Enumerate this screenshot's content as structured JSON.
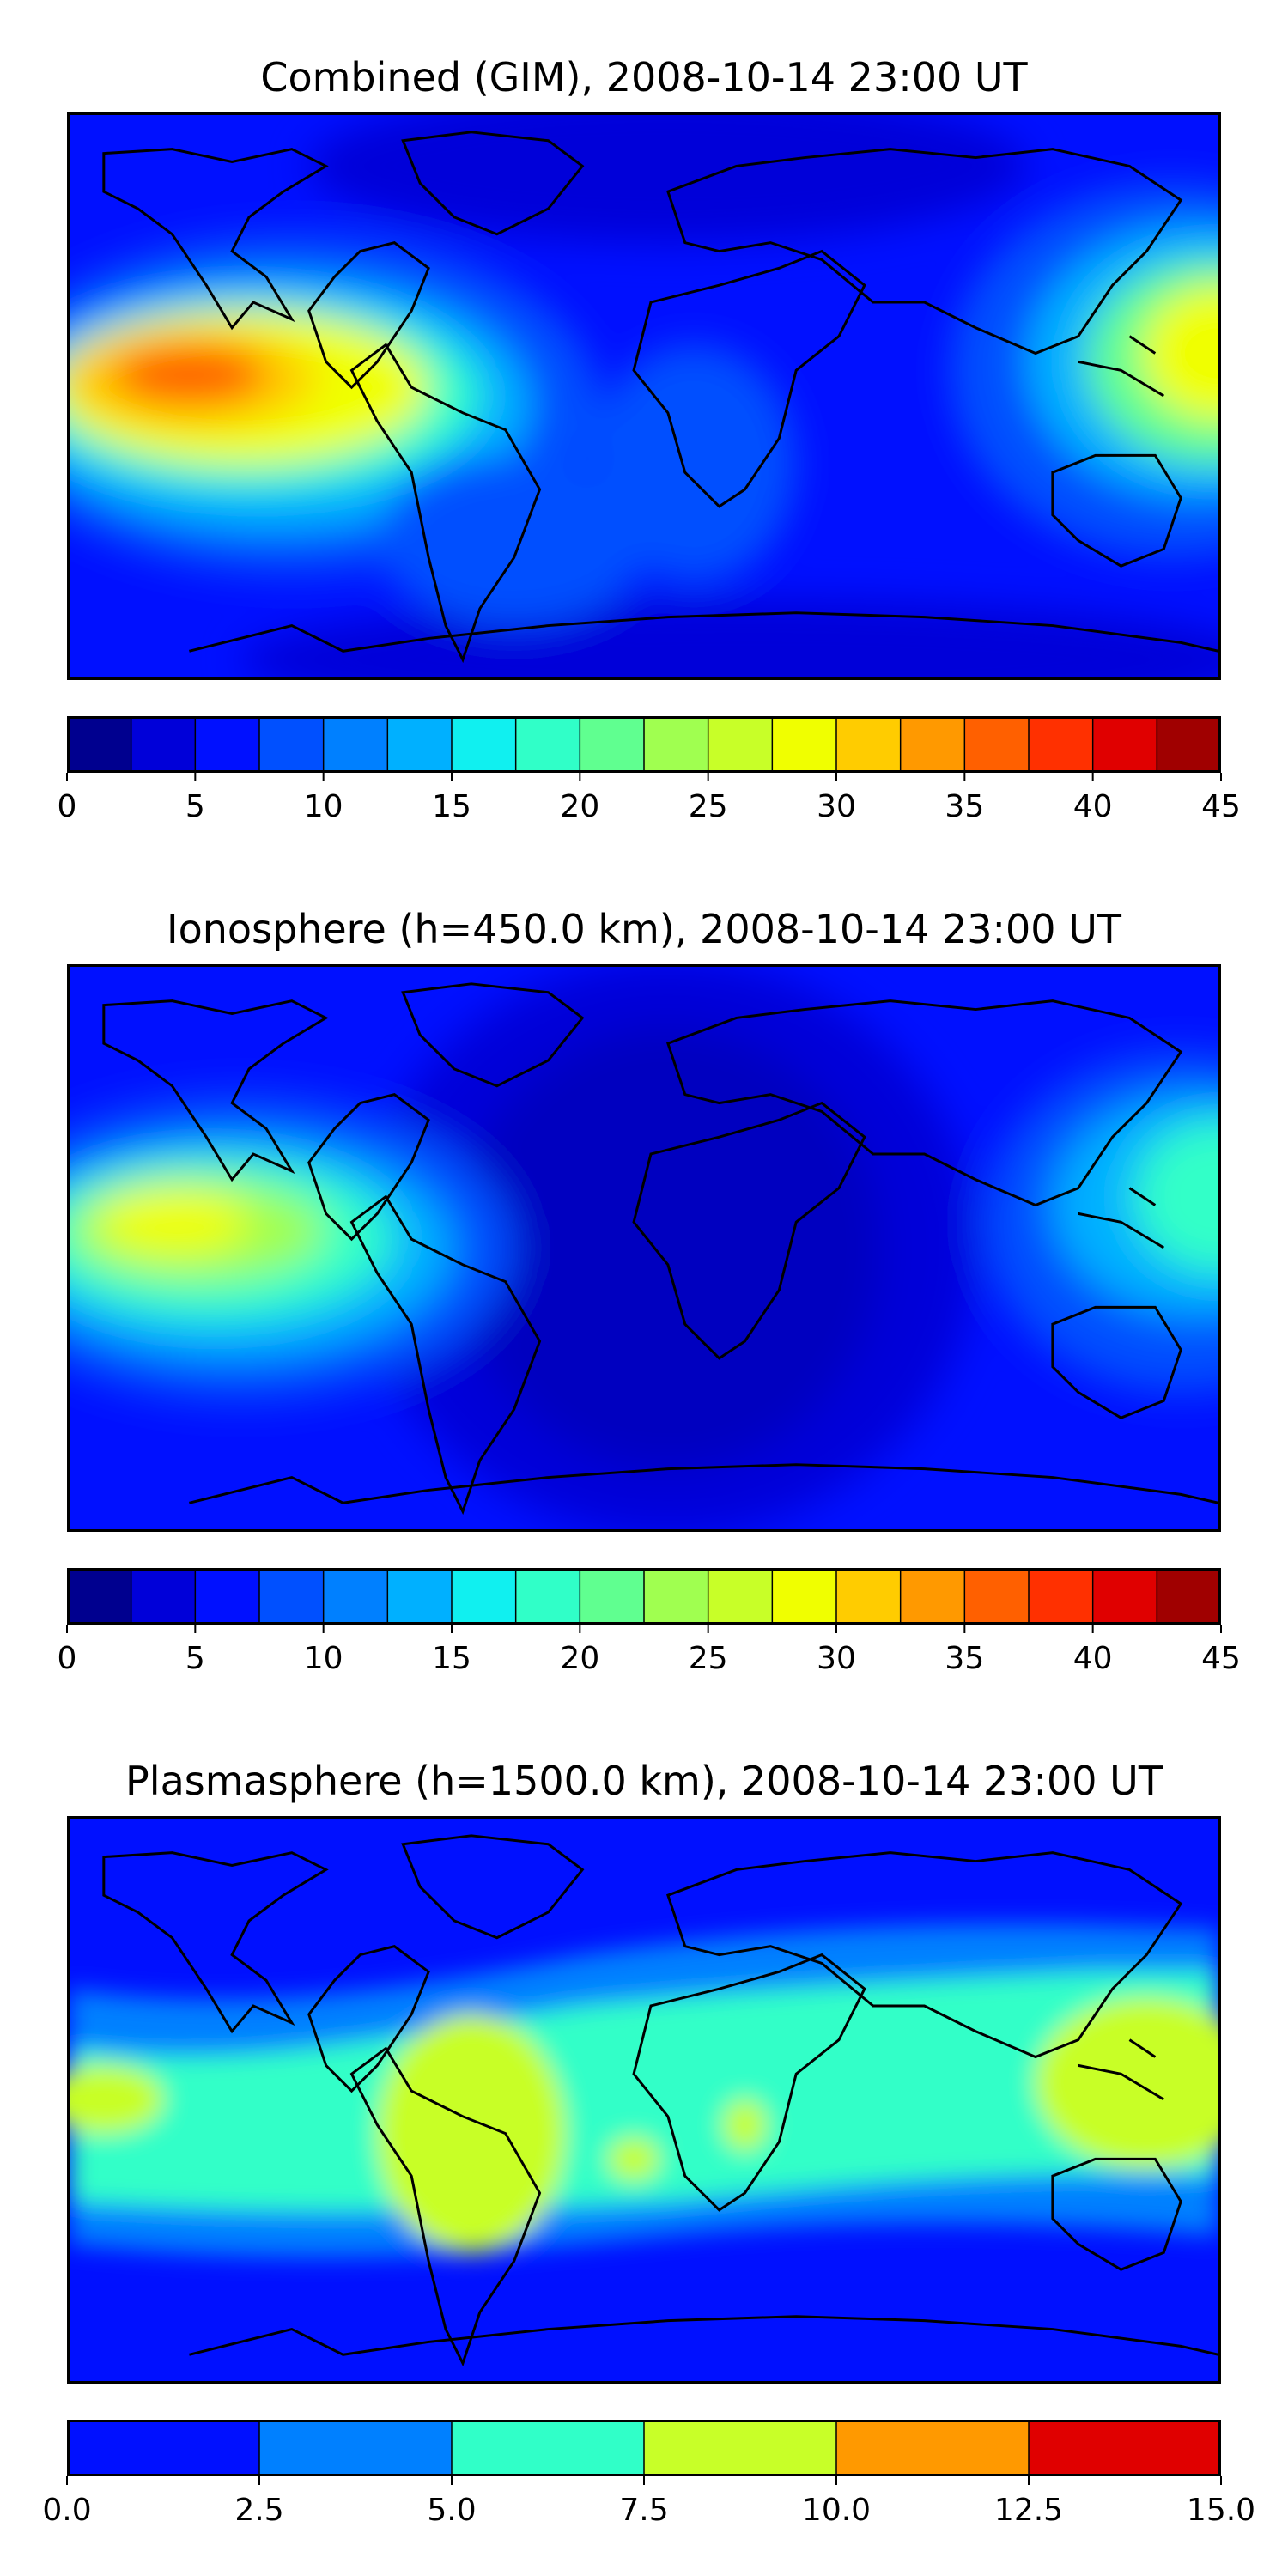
{
  "chart_data": [
    {
      "type": "heatmap",
      "title": "Combined (GIM), 2008-10-14 23:00 UT",
      "colorbar": {
        "boundaries": [
          0,
          2.5,
          5,
          7.5,
          10,
          12.5,
          15,
          17.5,
          20,
          22.5,
          25,
          27.5,
          30,
          32.5,
          35,
          37.5,
          40,
          42.5,
          45
        ],
        "ticks": [
          0,
          5,
          10,
          15,
          20,
          25,
          30,
          35,
          40,
          45
        ],
        "tick_labels": [
          "0",
          "5",
          "10",
          "15",
          "20",
          "25",
          "30",
          "35",
          "40",
          "45"
        ],
        "colors": [
          "#00008f",
          "#0000d9",
          "#0010ff",
          "#0050ff",
          "#0080ff",
          "#00b0ff",
          "#10f0f0",
          "#30ffc8",
          "#60ff90",
          "#a0ff50",
          "#c8ff28",
          "#f0ff00",
          "#ffcc00",
          "#ff9900",
          "#ff6000",
          "#ff3000",
          "#e00000",
          "#a00000"
        ]
      },
      "grid": false,
      "map": "world-equirectangular"
    },
    {
      "type": "heatmap",
      "title": "Ionosphere  (h=450.0 km), 2008-10-14 23:00 UT",
      "colorbar": {
        "boundaries": [
          0,
          2.5,
          5,
          7.5,
          10,
          12.5,
          15,
          17.5,
          20,
          22.5,
          25,
          27.5,
          30,
          32.5,
          35,
          37.5,
          40,
          42.5,
          45
        ],
        "ticks": [
          0,
          5,
          10,
          15,
          20,
          25,
          30,
          35,
          40,
          45
        ],
        "tick_labels": [
          "0",
          "5",
          "10",
          "15",
          "20",
          "25",
          "30",
          "35",
          "40",
          "45"
        ],
        "colors": [
          "#00008f",
          "#0000d9",
          "#0010ff",
          "#0050ff",
          "#0080ff",
          "#00b0ff",
          "#10f0f0",
          "#30ffc8",
          "#60ff90",
          "#a0ff50",
          "#c8ff28",
          "#f0ff00",
          "#ffcc00",
          "#ff9900",
          "#ff6000",
          "#ff3000",
          "#e00000",
          "#a00000"
        ]
      },
      "grid": false,
      "map": "world-equirectangular"
    },
    {
      "type": "heatmap",
      "title": "Plasmasphere (h=1500.0 km), 2008-10-14 23:00 UT",
      "colorbar": {
        "boundaries": [
          0,
          2.5,
          5,
          7.5,
          10,
          12.5,
          15
        ],
        "ticks": [
          0,
          2.5,
          5,
          7.5,
          10,
          12.5,
          15
        ],
        "tick_labels": [
          "0.0",
          "2.5",
          "5.0",
          "7.5",
          "10.0",
          "12.5",
          "15.0"
        ],
        "colors": [
          "#0010ff",
          "#0080ff",
          "#30ffc8",
          "#c8ff28",
          "#ff9900",
          "#e00000"
        ]
      },
      "grid": false,
      "map": "world-equirectangular"
    }
  ]
}
